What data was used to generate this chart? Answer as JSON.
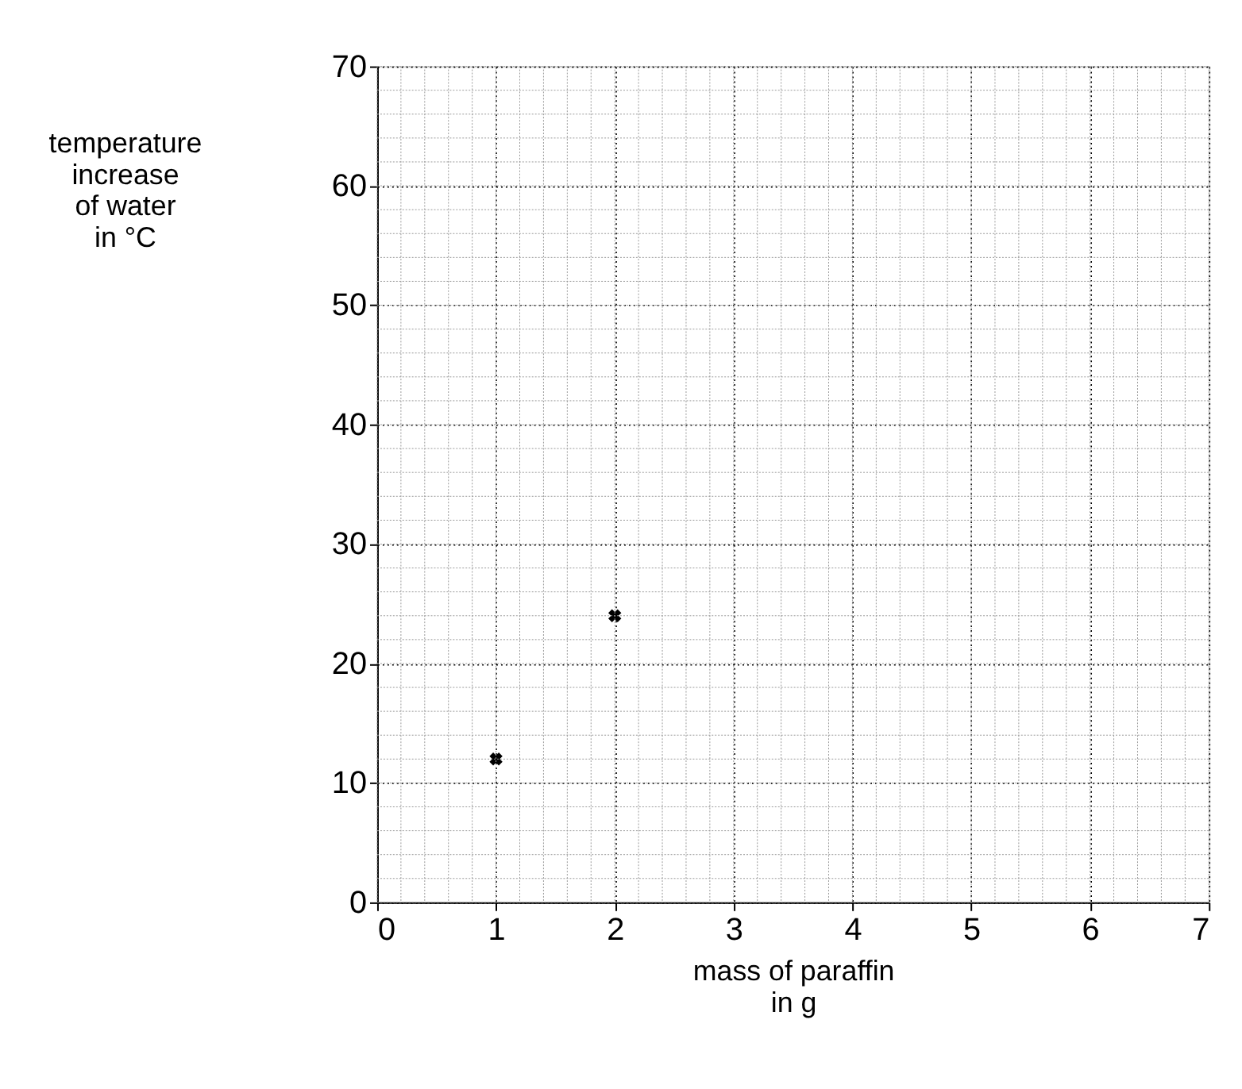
{
  "chart_data": {
    "type": "scatter",
    "xlabel": "mass of paraffin\nin g",
    "ylabel": "temperature\nincrease\nof water\nin °C",
    "x": [
      1,
      2
    ],
    "series": [
      {
        "color": "#000000",
        "values": [
          12,
          24
        ]
      }
    ],
    "xlim": [
      0,
      7
    ],
    "xticks": [
      0,
      1,
      2,
      3,
      4,
      5,
      6,
      7
    ],
    "ylim": [
      0,
      70
    ],
    "yticks": [
      0,
      10,
      20,
      30,
      40,
      50,
      60,
      70
    ],
    "grid": true,
    "marker": "cross"
  }
}
